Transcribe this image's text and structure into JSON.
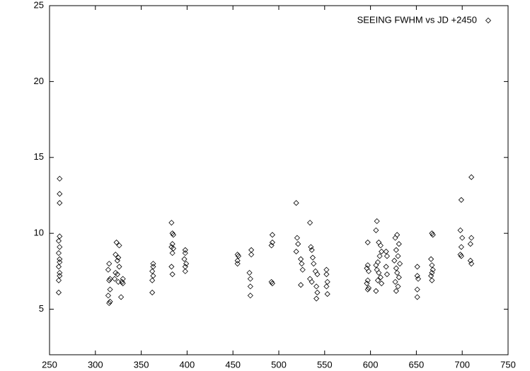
{
  "chart_data": {
    "type": "scatter",
    "xlim": [
      250,
      750
    ],
    "ylim": [
      2,
      25
    ],
    "xticks": [
      250,
      300,
      350,
      400,
      450,
      500,
      550,
      600,
      650,
      700,
      750
    ],
    "yticks": [
      5,
      10,
      15,
      20,
      25
    ],
    "legend": "upper right",
    "series": [
      {
        "name": "SEEING FWHM vs JD +2450",
        "color": "#000000",
        "x": [
          261,
          261,
          261,
          261,
          260,
          261,
          260,
          261,
          261,
          260,
          261,
          261,
          260,
          260,
          315,
          314,
          316,
          315,
          316,
          314,
          316,
          315,
          323,
          326,
          322,
          325,
          324,
          326,
          322,
          324,
          321,
          325,
          330,
          329,
          330,
          328,
          363,
          363,
          362,
          363,
          362,
          362,
          383,
          384,
          385,
          384,
          383,
          385,
          384,
          383,
          384,
          398,
          398,
          397,
          399,
          398,
          398,
          455,
          456,
          455,
          455,
          470,
          470,
          468,
          469,
          469,
          469,
          493,
          493,
          492,
          492,
          493,
          519,
          520,
          521,
          519,
          524,
          525,
          526,
          524,
          534,
          535,
          536,
          537,
          538,
          540,
          542,
          534,
          536,
          541,
          542,
          541,
          552,
          552,
          553,
          552,
          553,
          597,
          597,
          596,
          598,
          597,
          596,
          598,
          597,
          607,
          606,
          609,
          611,
          612,
          610,
          608,
          606,
          607,
          609,
          611,
          608,
          612,
          606,
          617,
          618,
          617,
          618,
          629,
          627,
          631,
          628,
          630,
          626,
          632,
          628,
          629,
          631,
          627,
          630,
          628,
          651,
          651,
          652,
          651,
          651,
          667,
          668,
          666,
          667,
          668,
          667,
          666,
          667,
          699,
          698,
          700,
          699,
          698,
          699,
          710,
          710,
          709,
          709,
          710
        ],
        "values": [
          13.6,
          12.6,
          12.0,
          9.8,
          9.5,
          9.1,
          8.7,
          8.3,
          8.1,
          7.8,
          7.4,
          7.2,
          6.9,
          6.1,
          8.0,
          7.6,
          7.0,
          6.9,
          6.3,
          5.9,
          5.5,
          5.4,
          9.4,
          9.2,
          8.6,
          8.4,
          8.2,
          7.8,
          7.4,
          7.3,
          7.0,
          6.8,
          7.0,
          6.8,
          6.7,
          5.8,
          8.0,
          7.8,
          7.5,
          7.2,
          6.9,
          6.1,
          10.7,
          10.0,
          9.9,
          9.3,
          9.1,
          9.0,
          8.7,
          7.8,
          7.3,
          8.9,
          8.7,
          8.3,
          8.0,
          7.8,
          7.5,
          8.6,
          8.5,
          8.2,
          8.0,
          8.9,
          8.6,
          7.4,
          7.0,
          6.5,
          5.9,
          9.9,
          9.4,
          9.2,
          6.8,
          6.7,
          12.0,
          9.7,
          9.3,
          8.8,
          8.3,
          8.0,
          7.6,
          6.6,
          10.7,
          9.1,
          8.9,
          8.4,
          8.0,
          7.5,
          7.3,
          7.0,
          6.8,
          6.5,
          6.1,
          5.7,
          7.6,
          7.3,
          6.8,
          6.5,
          6.0,
          9.4,
          7.9,
          7.7,
          7.5,
          6.9,
          6.7,
          6.4,
          6.3,
          10.8,
          10.2,
          9.4,
          9.2,
          8.8,
          8.5,
          8.1,
          7.9,
          7.6,
          7.4,
          7.1,
          6.9,
          6.7,
          6.2,
          8.8,
          8.5,
          7.8,
          7.3,
          9.9,
          9.7,
          9.3,
          8.9,
          8.5,
          8.2,
          8.0,
          7.7,
          7.4,
          7.1,
          6.8,
          6.5,
          6.2,
          7.8,
          7.2,
          7.0,
          6.3,
          5.8,
          10.0,
          9.9,
          8.3,
          7.9,
          7.6,
          7.4,
          7.2,
          6.9,
          12.2,
          10.2,
          9.7,
          9.1,
          8.6,
          8.5,
          13.7,
          9.7,
          9.3,
          8.2,
          8.0
        ]
      }
    ]
  }
}
